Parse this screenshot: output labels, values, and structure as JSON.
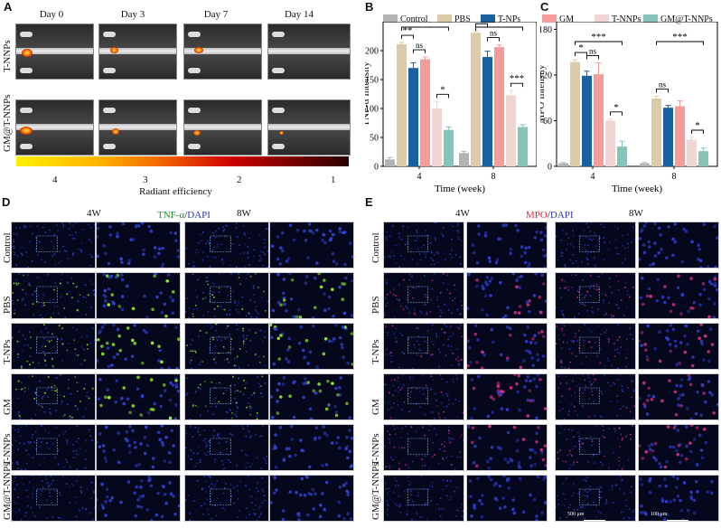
{
  "panels": {
    "a": "A",
    "b": "B",
    "c": "C",
    "d": "D",
    "e": "E"
  },
  "panel_a": {
    "days": [
      "Day 0",
      "Day 3",
      "Day 7",
      "Day 14"
    ],
    "rows": [
      "T-NNPs",
      "GM@T-NNPs"
    ],
    "colorbar_ticks": [
      "4",
      "3",
      "2",
      "1"
    ],
    "colorbar_label": "Radiant efficiency"
  },
  "legend": {
    "items": [
      {
        "name": "Control",
        "color": "#b3b3b3"
      },
      {
        "name": "PBS",
        "color": "#d9cca6"
      },
      {
        "name": "T-NPs",
        "color": "#1a5f9e"
      },
      {
        "name": "GM",
        "color": "#f59b99"
      },
      {
        "name": "T-NNPs",
        "color": "#efd6d3"
      },
      {
        "name": "GM@T-NNPs",
        "color": "#86c4b7"
      }
    ]
  },
  "chart_data": [
    {
      "type": "bar",
      "categories": [
        "4",
        "8"
      ],
      "series": [
        {
          "name": "Control",
          "values": [
            12,
            23
          ]
        },
        {
          "name": "PBS",
          "values": [
            211,
            231
          ]
        },
        {
          "name": "T-NPs",
          "values": [
            170,
            189
          ]
        },
        {
          "name": "GM",
          "values": [
            185,
            206
          ]
        },
        {
          "name": "T-NNPs",
          "values": [
            100,
            123
          ]
        },
        {
          "name": "GM@T-NNPs",
          "values": [
            63,
            68
          ]
        }
      ],
      "errors": [
        [
          3,
          3
        ],
        [
          3,
          3
        ],
        [
          9,
          10
        ],
        [
          4,
          4
        ],
        [
          12,
          8
        ],
        [
          5,
          4
        ]
      ],
      "xlabel": "Time (week)",
      "ylabel": "TNF-α Intensity",
      "ylim": [
        0,
        250
      ],
      "yticks": [
        0,
        50,
        100,
        150,
        200
      ],
      "significance": [
        {
          "group": "4",
          "from": "PBS",
          "to": "T-NPs",
          "label": "**"
        },
        {
          "group": "4",
          "from": "T-NPs",
          "to": "GM",
          "label": "ns"
        },
        {
          "group": "4",
          "from": "T-NNPs",
          "to": "GM@T-NNPs",
          "label": "*"
        },
        {
          "group": "4",
          "from": "PBS",
          "to": "GM@T-NNPs",
          "label": "***"
        },
        {
          "group": "8",
          "from": "PBS",
          "to": "T-NPs",
          "label": "*"
        },
        {
          "group": "8",
          "from": "T-NPs",
          "to": "GM",
          "label": "ns"
        },
        {
          "group": "8",
          "from": "T-NNPs",
          "to": "GM@T-NNPs",
          "label": "***"
        },
        {
          "group": "8",
          "from": "PBS",
          "to": "GM@T-NNPs",
          "label": "***"
        }
      ]
    },
    {
      "type": "bar",
      "categories": [
        "4",
        "8"
      ],
      "series": [
        {
          "name": "Control",
          "values": [
            4,
            4
          ]
        },
        {
          "name": "PBS",
          "values": [
            137,
            89
          ]
        },
        {
          "name": "T-NPs",
          "values": [
            119,
            77
          ]
        },
        {
          "name": "GM",
          "values": [
            121,
            79
          ]
        },
        {
          "name": "T-NNPs",
          "values": [
            60,
            35
          ]
        },
        {
          "name": "GM@T-NNPs",
          "values": [
            26,
            20
          ]
        }
      ],
      "errors": [
        [
          1,
          1
        ],
        [
          3,
          3
        ],
        [
          6,
          3
        ],
        [
          15,
          7
        ],
        [
          2,
          3
        ],
        [
          7,
          4
        ]
      ],
      "xlabel": "Time (week)",
      "ylabel": "MPO Intensity",
      "ylim": [
        0,
        190
      ],
      "yticks": [
        0,
        60,
        120,
        180
      ],
      "significance": [
        {
          "group": "4",
          "from": "PBS",
          "to": "T-NPs",
          "label": "*"
        },
        {
          "group": "4",
          "from": "T-NPs",
          "to": "GM",
          "label": "ns"
        },
        {
          "group": "4",
          "from": "T-NNPs",
          "to": "GM@T-NNPs",
          "label": "*"
        },
        {
          "group": "4",
          "from": "PBS",
          "to": "GM@T-NNPs",
          "label": "***"
        },
        {
          "group": "8",
          "from": "PBS",
          "to": "T-NPs",
          "label": "ns"
        },
        {
          "group": "8",
          "from": "T-NNPs",
          "to": "GM@T-NNPs",
          "label": "*"
        },
        {
          "group": "8",
          "from": "PBS",
          "to": "GM@T-NNPs",
          "label": "***"
        }
      ]
    }
  ],
  "panel_d": {
    "weeks": [
      "4W",
      "8W"
    ],
    "title_a": "TNF-α",
    "title_sep": "/",
    "title_b": "DAPI",
    "rows": [
      "Control",
      "PBS",
      "T-NPs",
      "GM",
      "T-NNPs",
      "GM@T-NNPs"
    ]
  },
  "panel_e": {
    "weeks": [
      "4W",
      "8W"
    ],
    "title_a": "MPO",
    "title_sep": "/",
    "title_b": "DAPI",
    "rows": [
      "Control",
      "PBS",
      "T-NPs",
      "GM",
      "T-NNPs",
      "GM@T-NNPs"
    ],
    "scale_1": "500 μm",
    "scale_2": "100 μm"
  }
}
